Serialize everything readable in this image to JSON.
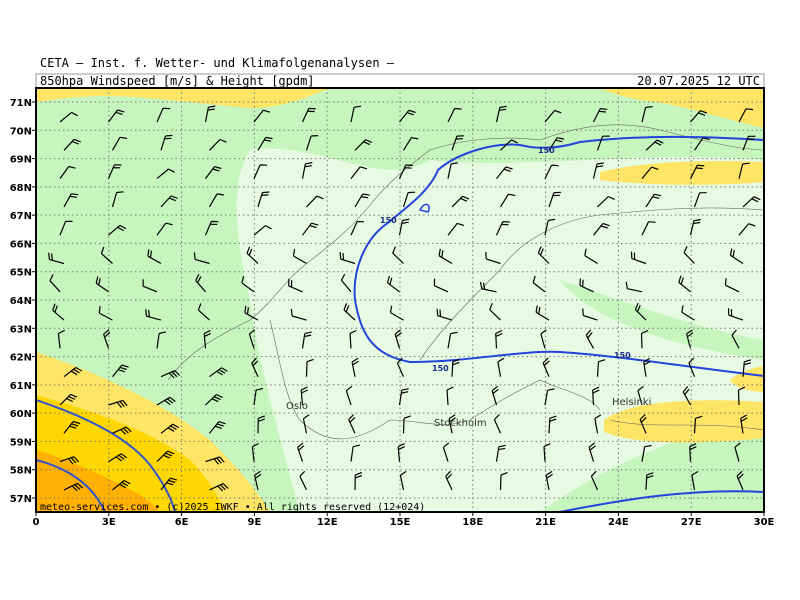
{
  "header": {
    "institute": "CETA — Inst. f. Wetter- und Klimafolgenanalysen —",
    "product": "850hpa Windspeed [m/s] & Height [gpdm]",
    "valid_time": "20.07.2025 12 UTC"
  },
  "map": {
    "lat_labels": [
      "71N",
      "70N",
      "69N",
      "68N",
      "67N",
      "66N",
      "65N",
      "64N",
      "63N",
      "62N",
      "61N",
      "60N",
      "59N",
      "58N",
      "57N"
    ],
    "lon_labels": [
      "0",
      "3E",
      "6E",
      "9E",
      "12E",
      "15E",
      "18E",
      "21E",
      "24E",
      "27E",
      "30E"
    ],
    "places": [
      "Oslo",
      "Stockholm",
      "Helsinki"
    ],
    "contour_labels": [
      "150",
      "150",
      "150",
      "150"
    ]
  },
  "footer": "meteo-services.com • (c)2025 IWKF • All rights reserved (12+024)"
}
